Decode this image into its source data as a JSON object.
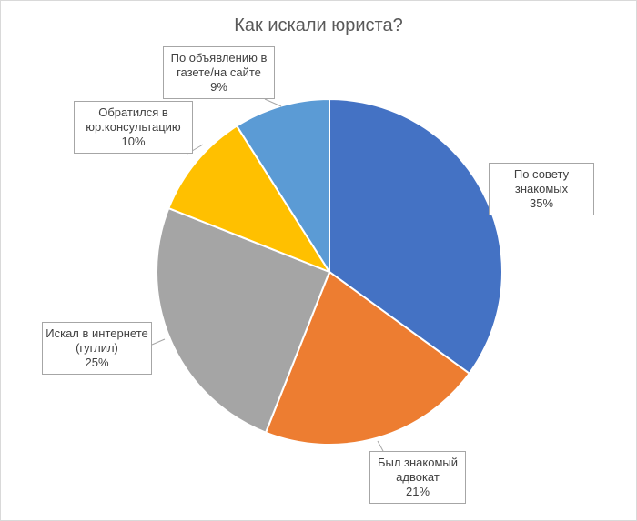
{
  "chart_data": {
    "type": "pie",
    "title": "Как искали юриста?",
    "categories": [
      "По совету знакомых",
      "Был знакомый адвокат",
      "Искал в интернете (гуглил)",
      "Обратился в юр.консультацию",
      "По объявлению в газете/на сайте"
    ],
    "values": [
      35,
      21,
      25,
      10,
      9
    ],
    "value_labels": [
      "35%",
      "21%",
      "25%",
      "10%",
      "9%"
    ],
    "colors": [
      "#4472c4",
      "#ed7d31",
      "#a5a5a5",
      "#ffc000",
      "#5b9bd5"
    ]
  }
}
